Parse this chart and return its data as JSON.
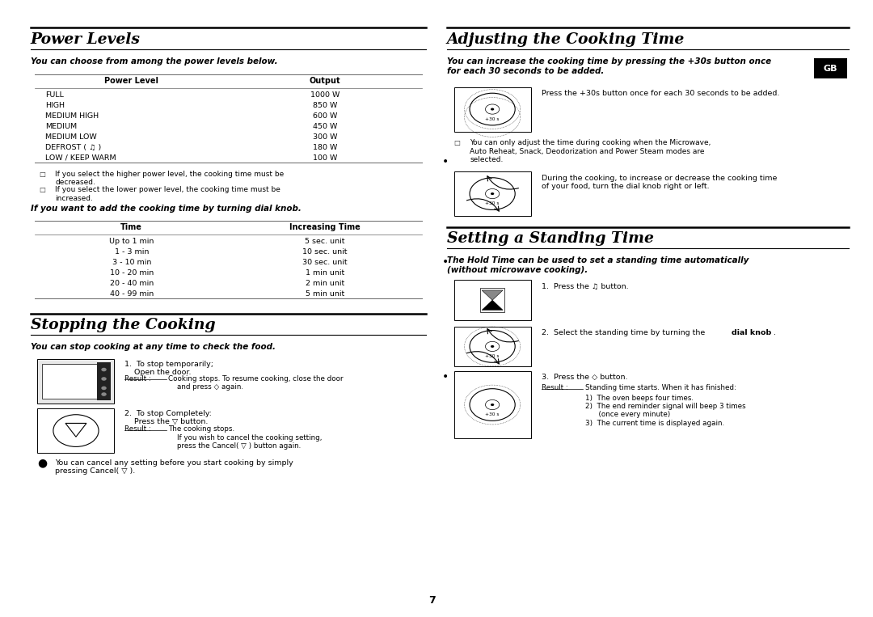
{
  "bg_color": "#ffffff",
  "page_number": "7",
  "section1_title": "Power Levels",
  "section1_subtitle": "You can choose from among the power levels below.",
  "power_table_headers": [
    "Power Level",
    "Output"
  ],
  "power_table_rows": [
    [
      "FULL",
      "1000 W"
    ],
    [
      "HIGH",
      "850 W"
    ],
    [
      "MEDIUM HIGH",
      "600 W"
    ],
    [
      "MEDIUM",
      "450 W"
    ],
    [
      "MEDIUM LOW",
      "300 W"
    ],
    [
      "DEFROST ( ♫ )",
      "180 W"
    ],
    [
      "LOW / KEEP WARM",
      "100 W"
    ]
  ],
  "power_notes": [
    "If you select the higher power level, the cooking time must be\ndecreased.",
    "If you select the lower power level, the cooking time must be\nincreased."
  ],
  "dial_subtitle": "If you want to add the cooking time by turning dial knob.",
  "time_table_headers": [
    "Time",
    "Increasing Time"
  ],
  "time_table_rows": [
    [
      "Up to 1 min",
      "5 sec. unit"
    ],
    [
      "1 - 3 min",
      "10 sec. unit"
    ],
    [
      "3 - 10 min",
      "30 sec. unit"
    ],
    [
      "10 - 20 min",
      "1 min unit"
    ],
    [
      "20 - 40 min",
      "2 min unit"
    ],
    [
      "40 - 99 min",
      "5 min unit"
    ]
  ],
  "section2_title": "Stopping the Cooking",
  "section2_subtitle": "You can stop cooking at any time to check the food.",
  "stop_note": "You can cancel any setting before you start cooking by simply\npressing Cancel( ▽ ).",
  "section3_title": "Adjusting the Cooking Time",
  "section3_subtitle": "You can increase the cooking time by pressing the +30s button once\nfor each 30 seconds to be added.",
  "gb_label": "GB",
  "adjust_note": "You can only adjust the time during cooking when the Microwave,\nAuto Reheat, Snack, Deodorization and Power Steam modes are\nselected.",
  "section4_title": "Setting a Standing Time",
  "section4_subtitle": "The Hold Time can be used to set a standing time automatically\n(without microwave cooking)."
}
